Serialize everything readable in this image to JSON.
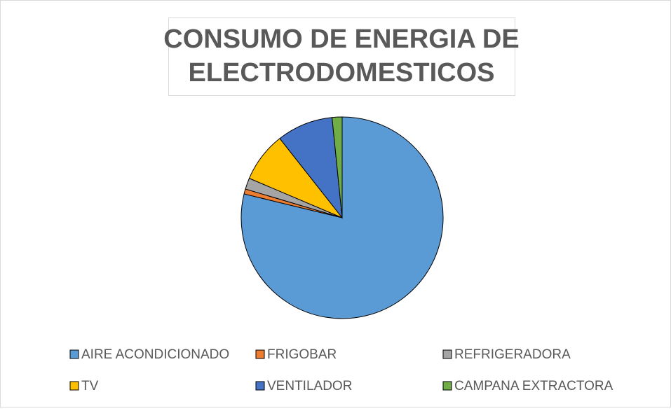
{
  "chart_data": {
    "type": "pie",
    "title": [
      "CONSUMO DE ENERGIA DE",
      "ELECTRODOMESTICOS"
    ],
    "categories": [
      "AIRE ACONDICIONADO",
      "FRIGOBAR",
      "REFRIGERADORA",
      "TV",
      "VENTILADOR",
      "CAMPANA EXTRACTORA"
    ],
    "values": [
      78.8,
      0.8,
      1.8,
      8.0,
      9.0,
      1.6
    ],
    "colors": [
      "#5b9bd5",
      "#ed7d31",
      "#a5a5a5",
      "#ffc000",
      "#4472c4",
      "#70ad47"
    ],
    "legend": "bottom"
  }
}
